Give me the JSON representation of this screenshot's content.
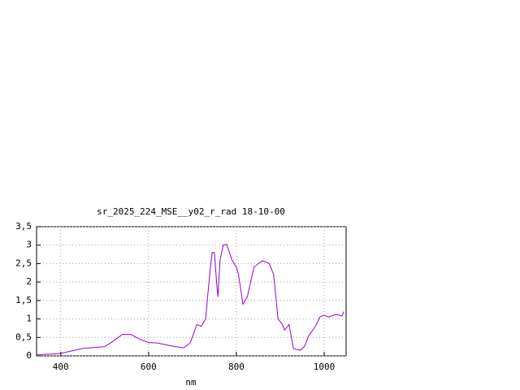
{
  "chart_data": {
    "type": "line",
    "title": "sr_2025_224_MSE__y02_r_rad 18-10-00",
    "xlabel": "nm",
    "x": [
      345,
      380,
      400,
      420,
      450,
      480,
      500,
      520,
      540,
      560,
      580,
      600,
      620,
      640,
      660,
      680,
      695,
      710,
      720,
      730,
      740,
      745,
      750,
      755,
      758,
      763,
      770,
      778,
      790,
      800,
      805,
      815,
      825,
      840,
      850,
      860,
      875,
      885,
      895,
      905,
      910,
      920,
      930,
      945,
      955,
      965,
      980,
      990,
      1000,
      1010,
      1020,
      1030,
      1040,
      1045
    ],
    "values": [
      0.03,
      0.05,
      0.07,
      0.12,
      0.2,
      0.23,
      0.25,
      0.4,
      0.58,
      0.58,
      0.45,
      0.36,
      0.35,
      0.3,
      0.25,
      0.22,
      0.35,
      0.85,
      0.8,
      1.0,
      2.3,
      2.8,
      2.8,
      2.0,
      1.6,
      2.6,
      3.0,
      3.02,
      2.6,
      2.4,
      2.2,
      1.4,
      1.6,
      2.4,
      2.5,
      2.58,
      2.5,
      2.2,
      1.0,
      0.85,
      0.7,
      0.85,
      0.2,
      0.15,
      0.25,
      0.55,
      0.8,
      1.05,
      1.1,
      1.05,
      1.1,
      1.12,
      1.08,
      1.2
    ],
    "color": "#9400d3",
    "xlim": [
      345,
      1050
    ],
    "ylim": [
      0,
      3.5
    ],
    "xticks": [
      400,
      600,
      800,
      1000
    ],
    "yticks": [
      0,
      {
        "value": 0.5,
        "label": "0,5"
      },
      1,
      {
        "value": 1.5,
        "label": "1,5"
      },
      2,
      {
        "value": 2.5,
        "label": "2,5"
      },
      3,
      {
        "value": 3.5,
        "label": "3,5"
      }
    ],
    "grid": true
  }
}
